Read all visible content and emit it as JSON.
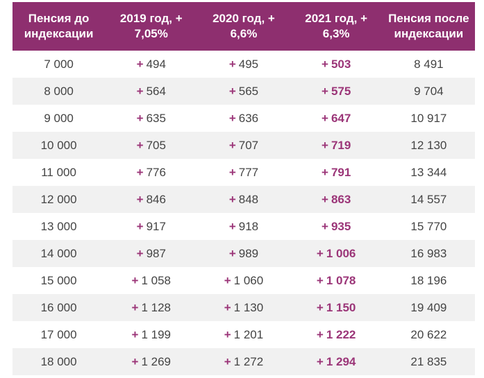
{
  "table": {
    "header": [
      "Пенсия до индексации",
      "2019 год, + 7,05%",
      "2020 год, + 6,6%",
      "2021 год, + 6,3%",
      "Пенсия после индексации"
    ],
    "rows": [
      [
        "7 000",
        {
          "sign": "+",
          "amount": "494"
        },
        {
          "sign": "+",
          "amount": "495"
        },
        {
          "sign": "+",
          "amount": "503"
        },
        "8 491"
      ],
      [
        "8 000",
        {
          "sign": "+",
          "amount": "564"
        },
        {
          "sign": "+",
          "amount": "565"
        },
        {
          "sign": "+",
          "amount": "575"
        },
        "9 704"
      ],
      [
        "9 000",
        {
          "sign": "+",
          "amount": "635"
        },
        {
          "sign": "+",
          "amount": "636"
        },
        {
          "sign": "+",
          "amount": "647"
        },
        "10 917"
      ],
      [
        "10 000",
        {
          "sign": "+",
          "amount": "705"
        },
        {
          "sign": "+",
          "amount": "707"
        },
        {
          "sign": "+",
          "amount": "719"
        },
        "12 130"
      ],
      [
        "11 000",
        {
          "sign": "+",
          "amount": "776"
        },
        {
          "sign": "+",
          "amount": "777"
        },
        {
          "sign": "+",
          "amount": "791"
        },
        "13 344"
      ],
      [
        "12 000",
        {
          "sign": "+",
          "amount": "846"
        },
        {
          "sign": "+",
          "amount": "848"
        },
        {
          "sign": "+",
          "amount": "863"
        },
        "14 557"
      ],
      [
        "13 000",
        {
          "sign": "+",
          "amount": "917"
        },
        {
          "sign": "+",
          "amount": "918"
        },
        {
          "sign": "+",
          "amount": "935"
        },
        "15 770"
      ],
      [
        "14 000",
        {
          "sign": "+",
          "amount": "987"
        },
        {
          "sign": "+",
          "amount": "989"
        },
        {
          "sign": "+",
          "amount": "1 006"
        },
        "16 983"
      ],
      [
        "15 000",
        {
          "sign": "+",
          "amount": "1 058"
        },
        {
          "sign": "+",
          "amount": "1 060"
        },
        {
          "sign": "+",
          "amount": "1 078"
        },
        "18 196"
      ],
      [
        "16 000",
        {
          "sign": "+",
          "amount": "1 128"
        },
        {
          "sign": "+",
          "amount": "1 130"
        },
        {
          "sign": "+",
          "amount": "1 150"
        },
        "19 409"
      ],
      [
        "17 000",
        {
          "sign": "+",
          "amount": "1 199"
        },
        {
          "sign": "+",
          "amount": "1 201"
        },
        {
          "sign": "+",
          "amount": "1 222"
        },
        "20 622"
      ],
      [
        "18 000",
        {
          "sign": "+",
          "amount": "1 269"
        },
        {
          "sign": "+",
          "amount": "1 272"
        },
        {
          "sign": "+",
          "amount": "1 294"
        },
        "21 835"
      ]
    ]
  }
}
